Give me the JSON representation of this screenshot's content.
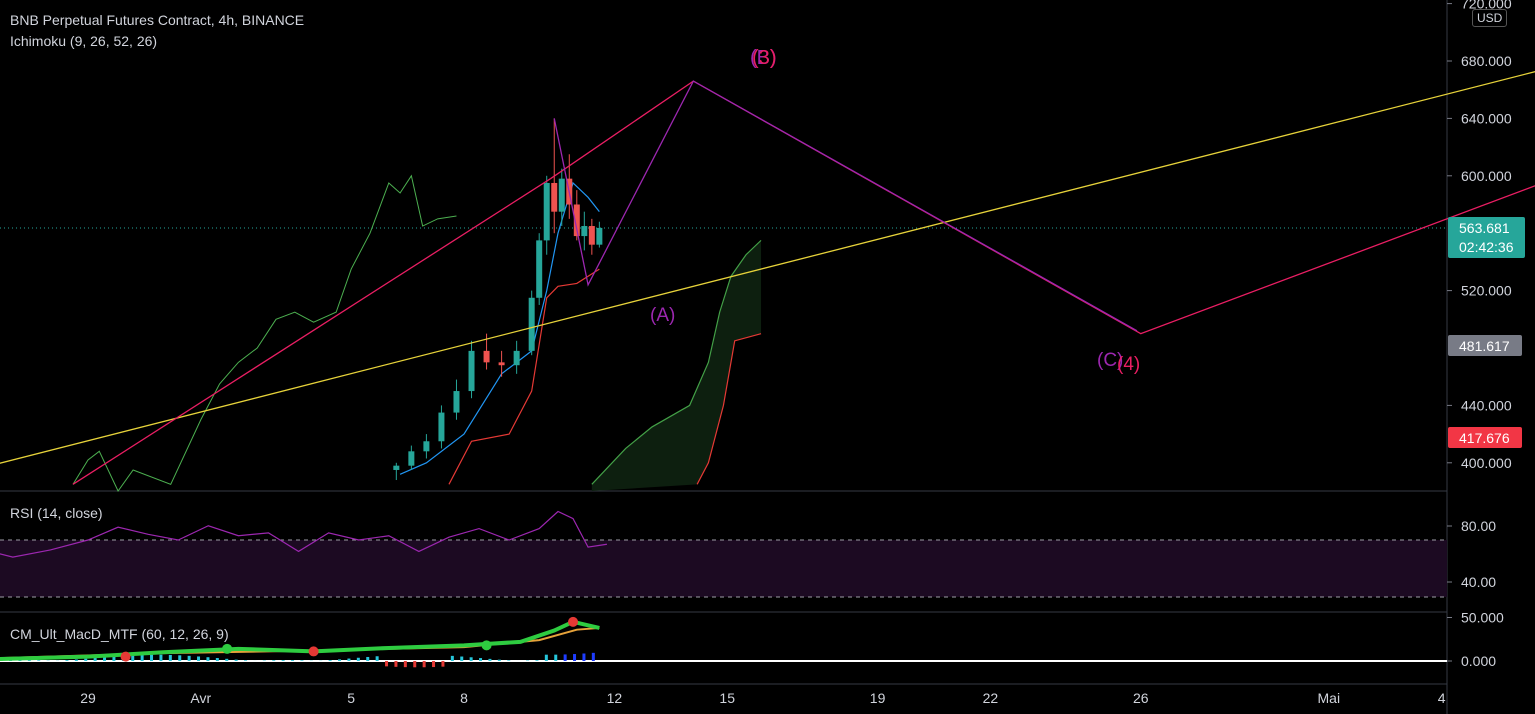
{
  "header": {
    "title": "BNB Perpetual Futures Contract, 4h, BINANCE",
    "indicator": "Ichimoku (9, 26, 52, 26)",
    "currency": "USD"
  },
  "price_axis": {
    "ticks": [
      "720.000",
      "680.000",
      "640.000",
      "600.000",
      "520.000",
      "440.000",
      "400.000"
    ],
    "tick_values": [
      720,
      680,
      640,
      600,
      520,
      440,
      400
    ],
    "last_price": {
      "label": "563.681",
      "value": 563.681,
      "countdown": "02:42:36",
      "color": "#26a69a"
    },
    "marker_grey": {
      "label": "481.617",
      "value": 481.617,
      "color": "#787b86"
    },
    "marker_red": {
      "label": "417.676",
      "value": 417.676,
      "color": "#f23645"
    }
  },
  "rsi_panel": {
    "title": "RSI (14, close)",
    "ticks": [
      "80.00",
      "40.00"
    ],
    "tick_values": [
      80,
      40
    ],
    "upper_band": 70,
    "lower_band": 30
  },
  "macd_panel": {
    "title": "CM_Ult_MacD_MTF (60, 12, 26, 9)",
    "ticks": [
      "50.000",
      "0.000"
    ],
    "tick_values": [
      50,
      0
    ]
  },
  "time_axis": {
    "labels": [
      {
        "text": "29",
        "day": 0
      },
      {
        "text": "Avr",
        "day": 3
      },
      {
        "text": "5",
        "day": 7
      },
      {
        "text": "8",
        "day": 10
      },
      {
        "text": "12",
        "day": 14
      },
      {
        "text": "15",
        "day": 17
      },
      {
        "text": "19",
        "day": 21
      },
      {
        "text": "22",
        "day": 24
      },
      {
        "text": "26",
        "day": 28
      },
      {
        "text": "Mai",
        "day": 33
      },
      {
        "text": "4",
        "day": 36
      }
    ]
  },
  "annotations": {
    "wave_A": "(A)",
    "wave_B": "(B)",
    "wave_3": "(3)",
    "wave_C": "(C)",
    "wave_4": "(4)"
  },
  "chart_data": {
    "type": "candlestick",
    "symbol": "BNB Perpetual Futures Contract",
    "interval": "4h",
    "exchange": "BINANCE",
    "price_range": [
      385,
      720
    ],
    "candles_approx": [
      {
        "day": 8.2,
        "o": 395,
        "h": 400,
        "l": 388,
        "c": 398
      },
      {
        "day": 8.6,
        "o": 398,
        "h": 412,
        "l": 395,
        "c": 408
      },
      {
        "day": 9.0,
        "o": 408,
        "h": 420,
        "l": 403,
        "c": 415
      },
      {
        "day": 9.4,
        "o": 415,
        "h": 440,
        "l": 410,
        "c": 435
      },
      {
        "day": 9.8,
        "o": 435,
        "h": 458,
        "l": 430,
        "c": 450
      },
      {
        "day": 10.2,
        "o": 450,
        "h": 485,
        "l": 445,
        "c": 478
      },
      {
        "day": 10.6,
        "o": 478,
        "h": 490,
        "l": 465,
        "c": 470
      },
      {
        "day": 11.0,
        "o": 470,
        "h": 478,
        "l": 460,
        "c": 468
      },
      {
        "day": 11.4,
        "o": 468,
        "h": 485,
        "l": 462,
        "c": 478
      },
      {
        "day": 11.8,
        "o": 478,
        "h": 520,
        "l": 475,
        "c": 515
      },
      {
        "day": 12.0,
        "o": 515,
        "h": 560,
        "l": 510,
        "c": 555
      },
      {
        "day": 12.2,
        "o": 555,
        "h": 600,
        "l": 545,
        "c": 595
      },
      {
        "day": 12.4,
        "o": 595,
        "h": 640,
        "l": 560,
        "c": 575
      },
      {
        "day": 12.6,
        "o": 575,
        "h": 605,
        "l": 565,
        "c": 598
      },
      {
        "day": 12.8,
        "o": 598,
        "h": 615,
        "l": 570,
        "c": 580
      },
      {
        "day": 13.0,
        "o": 580,
        "h": 590,
        "l": 555,
        "c": 558
      },
      {
        "day": 13.2,
        "o": 558,
        "h": 575,
        "l": 548,
        "c": 565
      },
      {
        "day": 13.4,
        "o": 565,
        "h": 570,
        "l": 545,
        "c": 552
      },
      {
        "day": 13.6,
        "o": 552,
        "h": 568,
        "l": 550,
        "c": 563.681
      }
    ],
    "drawings": {
      "yellow_trendline": [
        {
          "day": -2.6,
          "price": 398
        },
        {
          "day": 39.3,
          "price": 678
        }
      ],
      "red_projection": [
        {
          "day": 12.3,
          "price": 598
        },
        {
          "day": 16.1,
          "price": 666
        },
        {
          "day": 28.0,
          "price": 490
        },
        {
          "day": 39.3,
          "price": 601
        }
      ],
      "purple_projection": [
        {
          "day": 12.4,
          "price": 640
        },
        {
          "day": 13.3,
          "price": 524
        },
        {
          "day": 16.1,
          "price": 666
        },
        {
          "day": 27.9,
          "price": 492
        }
      ],
      "red_rising_line": [
        {
          "day": -0.4,
          "price": 385
        },
        {
          "day": 12.3,
          "price": 598
        }
      ]
    },
    "ichimoku_cloud_top": [
      {
        "day": 13.4,
        "price": 385
      },
      {
        "day": 14.3,
        "price": 410
      },
      {
        "day": 15.0,
        "price": 425
      },
      {
        "day": 16.0,
        "price": 440
      },
      {
        "day": 16.5,
        "price": 470
      },
      {
        "day": 16.8,
        "price": 505
      },
      {
        "day": 17.1,
        "price": 530
      },
      {
        "day": 17.5,
        "price": 545
      },
      {
        "day": 17.9,
        "price": 555
      }
    ],
    "ichimoku_cloud_bottom": [
      {
        "day": 16.2,
        "price": 385
      },
      {
        "day": 16.5,
        "price": 400
      },
      {
        "day": 16.9,
        "price": 440
      },
      {
        "day": 17.2,
        "price": 485
      },
      {
        "day": 17.9,
        "price": 490
      }
    ],
    "rsi": [
      {
        "day": -2.6,
        "v": 62
      },
      {
        "day": -2,
        "v": 58
      },
      {
        "day": -1,
        "v": 63
      },
      {
        "day": 0,
        "v": 70
      },
      {
        "day": 0.8,
        "v": 79
      },
      {
        "day": 1.6,
        "v": 74
      },
      {
        "day": 2.4,
        "v": 70
      },
      {
        "day": 3.2,
        "v": 80
      },
      {
        "day": 4.0,
        "v": 73
      },
      {
        "day": 4.8,
        "v": 75
      },
      {
        "day": 5.6,
        "v": 62
      },
      {
        "day": 6.4,
        "v": 75
      },
      {
        "day": 7.2,
        "v": 70
      },
      {
        "day": 8.0,
        "v": 73
      },
      {
        "day": 8.8,
        "v": 62
      },
      {
        "day": 9.6,
        "v": 72
      },
      {
        "day": 10.4,
        "v": 78
      },
      {
        "day": 11.2,
        "v": 70
      },
      {
        "day": 12.0,
        "v": 78
      },
      {
        "day": 12.5,
        "v": 90
      },
      {
        "day": 12.9,
        "v": 85
      },
      {
        "day": 13.3,
        "v": 65
      },
      {
        "day": 13.8,
        "v": 67
      }
    ],
    "macd": [
      {
        "day": -2.6,
        "v": 2
      },
      {
        "day": 0,
        "v": 5
      },
      {
        "day": 2,
        "v": 10
      },
      {
        "day": 4,
        "v": 14
      },
      {
        "day": 6,
        "v": 11
      },
      {
        "day": 8,
        "v": 15
      },
      {
        "day": 10,
        "v": 18
      },
      {
        "day": 11.5,
        "v": 22
      },
      {
        "day": 12.4,
        "v": 35
      },
      {
        "day": 12.9,
        "v": 45
      },
      {
        "day": 13.6,
        "v": 38
      }
    ],
    "macd_signal": [
      {
        "day": -2.6,
        "v": 3
      },
      {
        "day": 2,
        "v": 9
      },
      {
        "day": 6,
        "v": 12
      },
      {
        "day": 10,
        "v": 16
      },
      {
        "day": 12,
        "v": 24
      },
      {
        "day": 13,
        "v": 36
      },
      {
        "day": 13.6,
        "v": 38
      }
    ]
  }
}
